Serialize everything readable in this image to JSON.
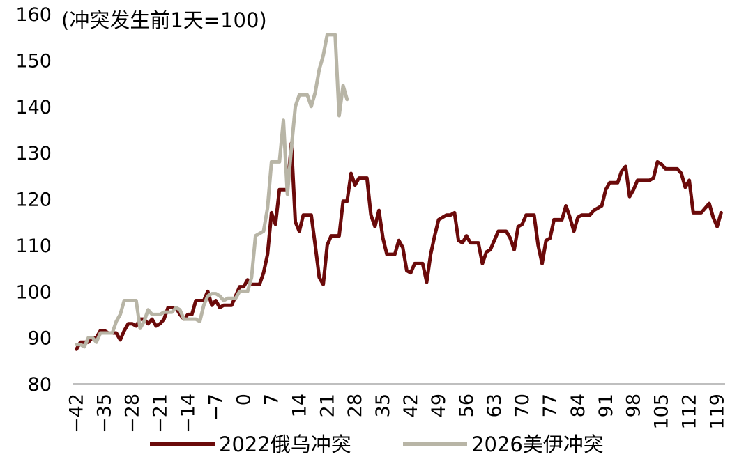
{
  "chart_data": {
    "type": "line",
    "unit_label": "(冲突发生前1天=100)",
    "y_ticks": [
      "160",
      "150",
      "140",
      "130",
      "120",
      "110",
      "100",
      "90",
      "80"
    ],
    "x_ticks": [
      "−42",
      "−35",
      "−28",
      "−21",
      "−14",
      "−7",
      "0",
      "7",
      "14",
      "21",
      "28",
      "35",
      "42",
      "49",
      "56",
      "63",
      "70",
      "77",
      "84",
      "91",
      "98",
      "105",
      "112",
      "119"
    ],
    "ylim": [
      80,
      160
    ],
    "xlim": [
      -43,
      121
    ],
    "grid": false,
    "legend_position": "bottom",
    "series": [
      {
        "name": "2022俄乌冲突",
        "color": "#6B0A0A",
        "points": [
          [
            -42,
            87.5
          ],
          [
            -41,
            89
          ],
          [
            -40,
            89
          ],
          [
            -39,
            89
          ],
          [
            -38,
            90
          ],
          [
            -37,
            90
          ],
          [
            -36,
            91.5
          ],
          [
            -35,
            91.5
          ],
          [
            -34,
            91
          ],
          [
            -33,
            91
          ],
          [
            -32,
            91
          ],
          [
            -31,
            89.5
          ],
          [
            -30,
            91.5
          ],
          [
            -29,
            93
          ],
          [
            -28,
            93
          ],
          [
            -27,
            92.5
          ],
          [
            -26,
            94
          ],
          [
            -25,
            94
          ],
          [
            -24,
            93
          ],
          [
            -23,
            94
          ],
          [
            -22,
            92.5
          ],
          [
            -21,
            93
          ],
          [
            -20,
            94
          ],
          [
            -19,
            96.5
          ],
          [
            -18,
            96.5
          ],
          [
            -17,
            96.5
          ],
          [
            -16,
            95
          ],
          [
            -15,
            94
          ],
          [
            -14,
            95
          ],
          [
            -13,
            95
          ],
          [
            -12,
            98
          ],
          [
            -11,
            98
          ],
          [
            -10,
            98
          ],
          [
            -9,
            100
          ],
          [
            -8,
            97
          ],
          [
            -7,
            98
          ],
          [
            -6,
            96.5
          ],
          [
            -5,
            97
          ],
          [
            -4,
            97
          ],
          [
            -3,
            97
          ],
          [
            -2,
            99
          ],
          [
            -1,
            101
          ],
          [
            0,
            101
          ],
          [
            1,
            102.5
          ],
          [
            2,
            101.5
          ],
          [
            3,
            101.5
          ],
          [
            4,
            101.5
          ],
          [
            5,
            104
          ],
          [
            6,
            108
          ],
          [
            7,
            117
          ],
          [
            8,
            114.5
          ],
          [
            9,
            122
          ],
          [
            10,
            122
          ],
          [
            11,
            122
          ],
          [
            12,
            132
          ],
          [
            13,
            115
          ],
          [
            14,
            113
          ],
          [
            15,
            116.5
          ],
          [
            16,
            116.5
          ],
          [
            17,
            116.5
          ],
          [
            18,
            110
          ],
          [
            19,
            103
          ],
          [
            20,
            101.5
          ],
          [
            21,
            110
          ],
          [
            22,
            112
          ],
          [
            23,
            112
          ],
          [
            24,
            112
          ],
          [
            25,
            119.5
          ],
          [
            26,
            119.5
          ],
          [
            27,
            125.5
          ],
          [
            28,
            123
          ],
          [
            29,
            124.5
          ],
          [
            30,
            124.5
          ],
          [
            31,
            124.5
          ],
          [
            32,
            116.5
          ],
          [
            33,
            114
          ],
          [
            34,
            117.5
          ],
          [
            35,
            111.5
          ],
          [
            36,
            108
          ],
          [
            37,
            108
          ],
          [
            38,
            108
          ],
          [
            39,
            111
          ],
          [
            40,
            109.5
          ],
          [
            41,
            104.5
          ],
          [
            42,
            104
          ],
          [
            43,
            106
          ],
          [
            44,
            106
          ],
          [
            45,
            106
          ],
          [
            46,
            102
          ],
          [
            47,
            108
          ],
          [
            48,
            112
          ],
          [
            49,
            115.5
          ],
          [
            50,
            116
          ],
          [
            51,
            116.5
          ],
          [
            52,
            116.5
          ],
          [
            53,
            117
          ],
          [
            54,
            111
          ],
          [
            55,
            110.5
          ],
          [
            56,
            112
          ],
          [
            57,
            110.5
          ],
          [
            58,
            110.5
          ],
          [
            59,
            110.5
          ],
          [
            60,
            106
          ],
          [
            61,
            108.5
          ],
          [
            62,
            109
          ],
          [
            63,
            111
          ],
          [
            64,
            113
          ],
          [
            65,
            113
          ],
          [
            66,
            113
          ],
          [
            67,
            111.5
          ],
          [
            68,
            109
          ],
          [
            69,
            114
          ],
          [
            70,
            114.5
          ],
          [
            71,
            116.5
          ],
          [
            72,
            116.5
          ],
          [
            73,
            116.5
          ],
          [
            74,
            110
          ],
          [
            75,
            106
          ],
          [
            76,
            111
          ],
          [
            77,
            111.5
          ],
          [
            78,
            115.5
          ],
          [
            79,
            115.5
          ],
          [
            80,
            115.5
          ],
          [
            81,
            118.5
          ],
          [
            82,
            116
          ],
          [
            83,
            113
          ],
          [
            84,
            116
          ],
          [
            85,
            116.5
          ],
          [
            86,
            116.5
          ],
          [
            87,
            116.5
          ],
          [
            88,
            117.5
          ],
          [
            89,
            118
          ],
          [
            90,
            118.5
          ],
          [
            91,
            122
          ],
          [
            92,
            123.5
          ],
          [
            93,
            123.5
          ],
          [
            94,
            123.5
          ],
          [
            95,
            126
          ],
          [
            96,
            127
          ],
          [
            97,
            120.5
          ],
          [
            98,
            122
          ],
          [
            99,
            124
          ],
          [
            100,
            124
          ],
          [
            101,
            124
          ],
          [
            102,
            124
          ],
          [
            103,
            124.5
          ],
          [
            104,
            128
          ],
          [
            105,
            127.5
          ],
          [
            106,
            126.5
          ],
          [
            107,
            126.5
          ],
          [
            108,
            126.5
          ],
          [
            109,
            126.5
          ],
          [
            110,
            125.5
          ],
          [
            111,
            122.5
          ],
          [
            112,
            124
          ],
          [
            113,
            117
          ],
          [
            114,
            117
          ],
          [
            115,
            117
          ],
          [
            116,
            118
          ],
          [
            117,
            119
          ],
          [
            118,
            116
          ],
          [
            119,
            114
          ],
          [
            120,
            117
          ]
        ]
      },
      {
        "name": "2026美伊冲突",
        "color": "#B8B5A6",
        "points": [
          [
            -42,
            88.5
          ],
          [
            -41,
            88.5
          ],
          [
            -40,
            88
          ],
          [
            -39,
            90
          ],
          [
            -38,
            90
          ],
          [
            -37,
            89
          ],
          [
            -36,
            91
          ],
          [
            -35,
            91
          ],
          [
            -34,
            91
          ],
          [
            -33,
            91
          ],
          [
            -32,
            93.5
          ],
          [
            -31,
            95
          ],
          [
            -30,
            98
          ],
          [
            -29,
            98
          ],
          [
            -28,
            98
          ],
          [
            -27,
            98
          ],
          [
            -26,
            92
          ],
          [
            -25,
            93.5
          ],
          [
            -24,
            96
          ],
          [
            -23,
            95
          ],
          [
            -22,
            95
          ],
          [
            -21,
            95
          ],
          [
            -20,
            95.5
          ],
          [
            -19,
            95.5
          ],
          [
            -18,
            95.5
          ],
          [
            -17,
            96.5
          ],
          [
            -16,
            96
          ],
          [
            -15,
            94
          ],
          [
            -14,
            94
          ],
          [
            -13,
            94
          ],
          [
            -12,
            94
          ],
          [
            -11,
            93.5
          ],
          [
            -10,
            97
          ],
          [
            -9,
            99
          ],
          [
            -8,
            99.5
          ],
          [
            -7,
            99.5
          ],
          [
            -6,
            99
          ],
          [
            -5,
            98
          ],
          [
            -4,
            98.5
          ],
          [
            -3,
            98.5
          ],
          [
            -2,
            98.5
          ],
          [
            -1,
            100
          ],
          [
            0,
            100
          ],
          [
            1,
            100
          ],
          [
            2,
            103
          ],
          [
            3,
            112
          ],
          [
            4,
            112.5
          ],
          [
            5,
            113
          ],
          [
            6,
            118
          ],
          [
            7,
            128
          ],
          [
            8,
            128
          ],
          [
            9,
            128
          ],
          [
            10,
            137
          ],
          [
            11,
            121
          ],
          [
            12,
            131
          ],
          [
            13,
            140
          ],
          [
            14,
            142.5
          ],
          [
            15,
            142.5
          ],
          [
            16,
            142.5
          ],
          [
            17,
            140
          ],
          [
            18,
            143
          ],
          [
            19,
            148
          ],
          [
            20,
            151
          ],
          [
            21,
            155.5
          ],
          [
            22,
            155.5
          ],
          [
            23,
            155.5
          ],
          [
            24,
            138
          ],
          [
            25,
            144.5
          ],
          [
            26,
            141.5
          ]
        ]
      }
    ]
  }
}
